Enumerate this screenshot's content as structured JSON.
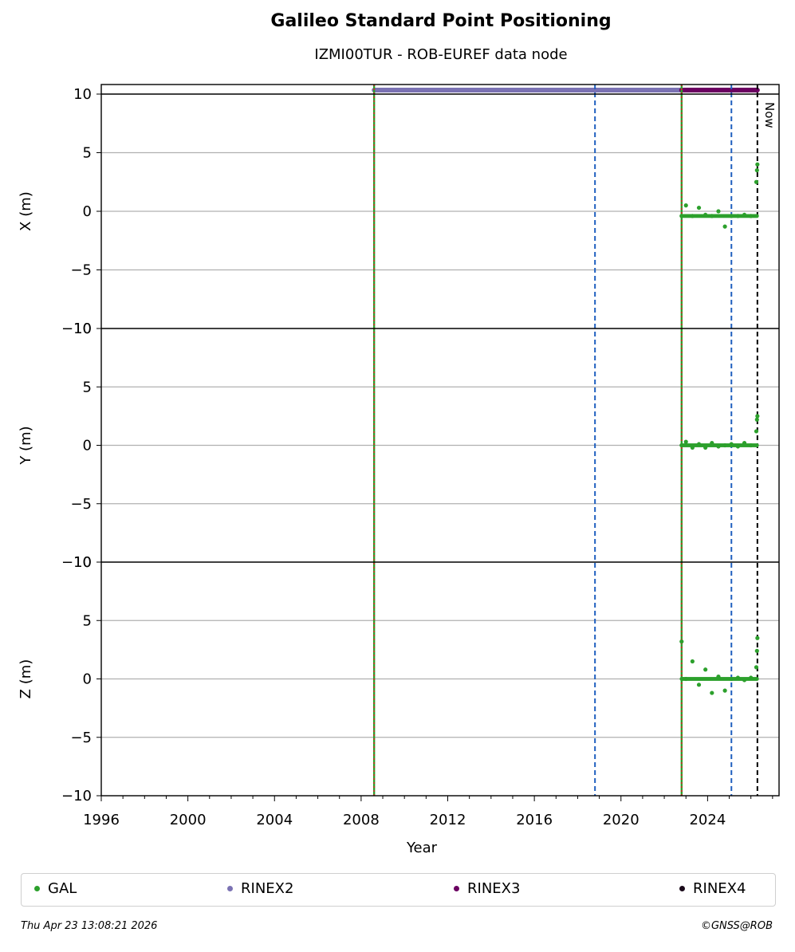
{
  "chart_data": {
    "type": "scatter",
    "title": "Galileo Standard Point Positioning",
    "subtitle": "IZMI00TUR - ROB-EUREF data node",
    "xlabel": "Year",
    "xlim": [
      1996,
      2027.3
    ],
    "x_ticks": [
      "1996",
      "2000",
      "2004",
      "2008",
      "2012",
      "2016",
      "2020",
      "2024"
    ],
    "panels": [
      {
        "ylabel": "X (m)",
        "ylim": [
          -10,
          10
        ],
        "y_ticks": [
          "−10",
          "−5",
          "0",
          "5",
          "10"
        ]
      },
      {
        "ylabel": "Y (m)",
        "ylim": [
          -10,
          10
        ],
        "y_ticks": [
          "−10",
          "−5",
          "0",
          "5",
          "10"
        ]
      },
      {
        "ylabel": "Z (m)",
        "ylim": [
          -10,
          10
        ],
        "y_ticks": [
          "−10",
          "−5",
          "0",
          "5",
          "10"
        ]
      }
    ],
    "vertical_lines": [
      {
        "x": 2008.6,
        "style": "red-green-dotted"
      },
      {
        "x": 2018.8,
        "style": "blue-dashed"
      },
      {
        "x": 2022.8,
        "style": "red-green-dotted"
      },
      {
        "x": 2025.1,
        "style": "blue-dashed"
      },
      {
        "x": 2026.3,
        "style": "black-dashed",
        "label": "Now"
      }
    ],
    "availability_bars": [
      {
        "name": "RINEX2",
        "start": 2008.6,
        "end": 2022.8,
        "color": "#7b72b3"
      },
      {
        "name": "RINEX3",
        "start": 2022.8,
        "end": 2026.3,
        "color": "#6b0061"
      }
    ],
    "series": [
      {
        "name": "GAL",
        "color": "#2ca02c",
        "panel": "X",
        "x": [
          2022.8,
          2023.0,
          2023.3,
          2023.6,
          2023.9,
          2024.2,
          2024.5,
          2024.8,
          2025.1,
          2025.4,
          2025.7,
          2026.0,
          2026.25,
          2026.28,
          2026.3
        ],
        "y": [
          -0.4,
          0.5,
          -0.4,
          0.3,
          -0.3,
          -0.4,
          0.0,
          -1.3,
          -0.4,
          -0.4,
          -0.3,
          -0.4,
          2.5,
          3.5,
          4.0
        ]
      },
      {
        "name": "GAL",
        "color": "#2ca02c",
        "panel": "Y",
        "x": [
          2022.8,
          2023.0,
          2023.3,
          2023.6,
          2023.9,
          2024.2,
          2024.5,
          2024.8,
          2025.1,
          2025.4,
          2025.7,
          2026.0,
          2026.25,
          2026.28,
          2026.3
        ],
        "y": [
          0.0,
          0.3,
          -0.2,
          0.1,
          -0.2,
          0.2,
          -0.1,
          0.0,
          0.1,
          -0.1,
          0.2,
          0.0,
          1.2,
          2.2,
          2.5
        ]
      },
      {
        "name": "GAL",
        "color": "#2ca02c",
        "panel": "Z",
        "x": [
          2022.8,
          2023.0,
          2023.3,
          2023.6,
          2023.9,
          2024.2,
          2024.5,
          2024.8,
          2025.1,
          2025.4,
          2025.7,
          2026.0,
          2026.25,
          2026.28,
          2026.3
        ],
        "y": [
          3.2,
          0.0,
          1.5,
          -0.5,
          0.8,
          -1.2,
          0.2,
          -1.0,
          0.0,
          0.1,
          -0.1,
          0.1,
          1.0,
          2.4,
          3.5
        ]
      }
    ],
    "legend": [
      {
        "name": "GAL",
        "color": "#2ca02c"
      },
      {
        "name": "RINEX2",
        "color": "#7b72b3"
      },
      {
        "name": "RINEX3",
        "color": "#6b0061"
      },
      {
        "name": "RINEX4",
        "color": "#1a0a1a"
      }
    ],
    "legend_placement": "bottom",
    "grid": "horizontal"
  },
  "footer": {
    "timestamp": "Thu Apr 23 13:08:21 2026",
    "credit": "©GNSS@ROB"
  }
}
